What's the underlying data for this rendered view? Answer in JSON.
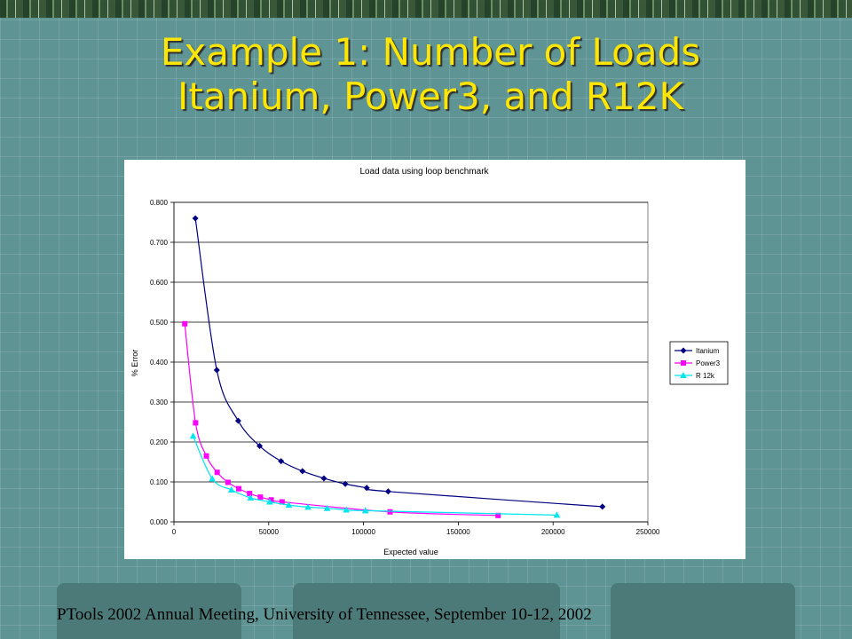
{
  "slide": {
    "title_line1": "Example 1: Number of Loads",
    "title_line2": "Itanium, Power3, and R12K",
    "footer": "PTools 2002 Annual Meeting, University of Tennessee, September 10-12, 2002"
  },
  "chart_data": {
    "type": "line",
    "title": "Load data using loop benchmark",
    "xlabel": "Expected value",
    "ylabel": "% Error",
    "xlim": [
      0,
      250000
    ],
    "ylim": [
      0,
      0.8
    ],
    "x_ticks": [
      "0",
      "50000",
      "100000",
      "150000",
      "200000",
      "250000"
    ],
    "y_ticks": [
      "0.000",
      "0.100",
      "0.200",
      "0.300",
      "0.400",
      "0.500",
      "0.600",
      "0.700",
      "0.800"
    ],
    "grid": "horizontal",
    "legend_position": "right",
    "series": [
      {
        "name": "Itanium",
        "color": "#000080",
        "marker": "diamond",
        "x": [
          11300,
          22600,
          33900,
          45200,
          56500,
          67800,
          79100,
          90400,
          101700,
          113000,
          226000
        ],
        "y": [
          0.76,
          0.38,
          0.253,
          0.19,
          0.152,
          0.127,
          0.109,
          0.095,
          0.085,
          0.076,
          0.038
        ]
      },
      {
        "name": "Power3",
        "color": "#ff00ff",
        "marker": "square",
        "x": [
          5700,
          11400,
          17100,
          22800,
          28500,
          34200,
          39900,
          45600,
          51300,
          57000,
          114000,
          171000
        ],
        "y": [
          0.496,
          0.248,
          0.165,
          0.124,
          0.099,
          0.083,
          0.071,
          0.062,
          0.055,
          0.05,
          0.025,
          0.016
        ]
      },
      {
        "name": "R 12k",
        "color": "#00e5ee",
        "marker": "triangle",
        "x": [
          10100,
          20200,
          30300,
          40400,
          50500,
          60600,
          70700,
          80800,
          90900,
          101000,
          202000
        ],
        "y": [
          0.215,
          0.108,
          0.08,
          0.06,
          0.05,
          0.042,
          0.037,
          0.034,
          0.03,
          0.028,
          0.017
        ]
      }
    ]
  }
}
